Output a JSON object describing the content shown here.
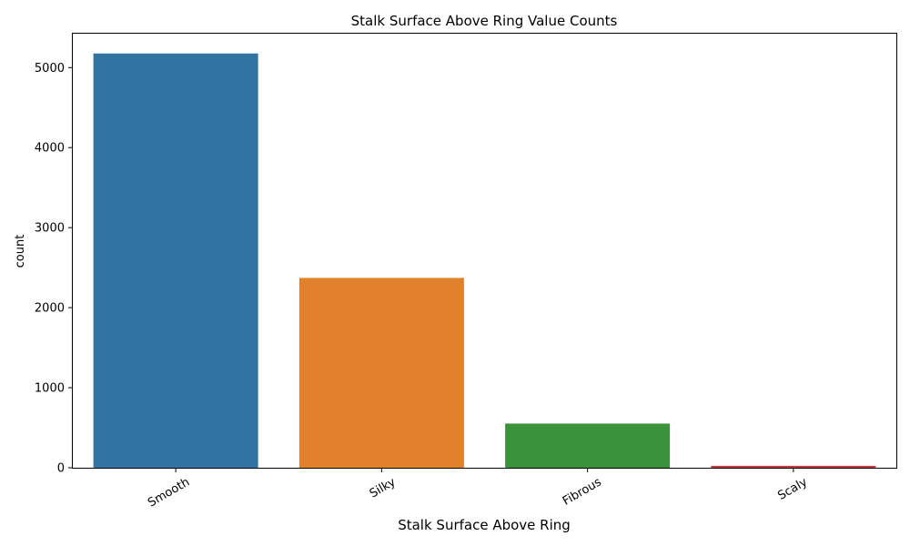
{
  "chart_data": {
    "type": "bar",
    "title": "Stalk Surface Above Ring Value Counts",
    "xlabel": "Stalk Surface Above Ring",
    "ylabel": "count",
    "categories": [
      "Smooth",
      "Silky",
      "Fibrous",
      "Scaly"
    ],
    "values": [
      5176,
      2372,
      552,
      24
    ],
    "colors": [
      "#3274a1",
      "#e1812c",
      "#3a923a",
      "#c03d3e"
    ],
    "ylim": [
      0,
      5435
    ],
    "yticks": [
      0,
      1000,
      2000,
      3000,
      4000,
      5000
    ],
    "ytick_labels": [
      "0",
      "1000",
      "2000",
      "3000",
      "4000",
      "5000"
    ],
    "grid": false,
    "x_tick_rotation": 30
  }
}
